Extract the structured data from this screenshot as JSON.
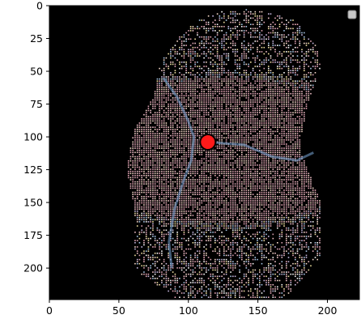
{
  "chart_data": {
    "type": "scatter",
    "title": "",
    "xlabel": "",
    "ylabel": "",
    "xlim": [
      0,
      223
    ],
    "ylim": [
      224,
      0
    ],
    "x_ticks": [
      0,
      50,
      100,
      150,
      200
    ],
    "y_ticks": [
      0,
      25,
      50,
      75,
      100,
      125,
      150,
      175,
      200
    ],
    "background_color": "#000000",
    "grid": false,
    "legend": {
      "placement": "top-right",
      "entries": [
        ""
      ],
      "colors": [
        "#c8c8c8"
      ]
    },
    "series": [
      {
        "kind": "point-cloud",
        "colors": [
          "#e8a8b8",
          "#f0c0c8",
          "#d8a0b0",
          "#f5d8c8",
          "#c8b8e0",
          "#a8c8e8",
          "#f0e0a0",
          "#ffffff"
        ],
        "outline": [
          [
            60,
            150
          ],
          [
            60,
            200
          ],
          [
            90,
            222
          ],
          [
            170,
            222
          ],
          [
            195,
            190
          ],
          [
            195,
            150
          ],
          [
            180,
            110
          ],
          [
            185,
            75
          ],
          [
            195,
            45
          ],
          [
            190,
            25
          ],
          [
            175,
            10
          ],
          [
            145,
            2
          ],
          [
            115,
            5
          ],
          [
            95,
            20
          ],
          [
            78,
            45
          ],
          [
            75,
            68
          ],
          [
            60,
            95
          ],
          [
            55,
            125
          ]
        ]
      },
      {
        "kind": "highlight-point",
        "x": 114,
        "y": 104,
        "color": "#ff1a1a",
        "edge_color": "#000000"
      }
    ]
  }
}
